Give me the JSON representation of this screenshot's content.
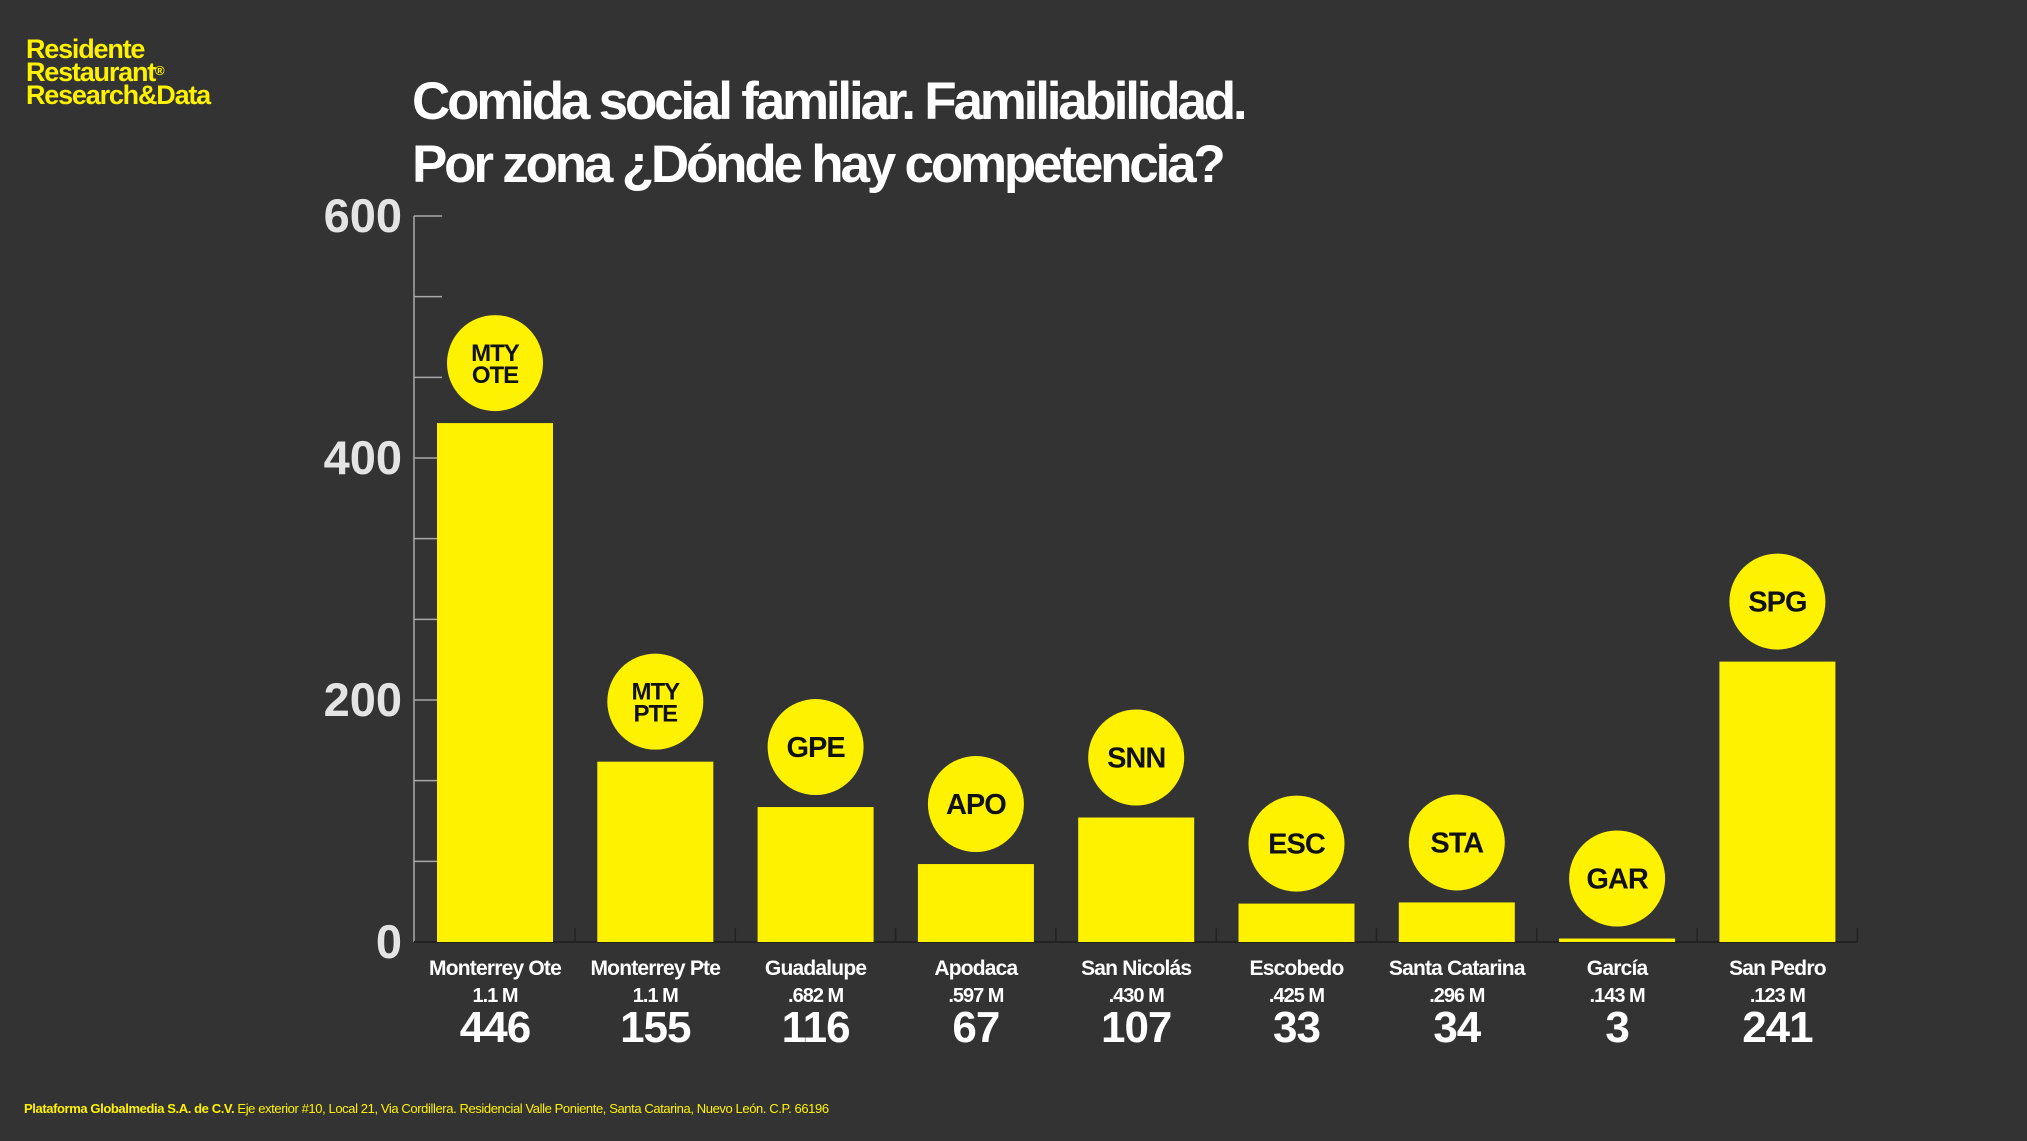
{
  "brand": {
    "lines": [
      "Residente",
      "Restaurant",
      "Research&Data"
    ],
    "registered_mark": "®"
  },
  "title": {
    "line1": "Comida social familiar. Familiabilidad.",
    "line2": "Por zona ¿Dónde hay competencia?"
  },
  "colors": {
    "background": "#333333",
    "accent": "#fff200",
    "axis": "#aaaaaa",
    "text": "#ffffff",
    "tick_label": "#e4e4e4"
  },
  "chart_data": {
    "type": "bar",
    "title": "Comida social familiar. Familiabilidad. Por zona ¿Dónde hay competencia?",
    "xlabel": "",
    "ylabel": "",
    "ylim": [
      0,
      600
    ],
    "yticks": [
      0,
      200,
      400,
      600
    ],
    "y_minor_step": 66.67,
    "grid": false,
    "legend": "none",
    "categories": [
      "Monterrey Ote",
      "Monterrey Pte",
      "Guadalupe",
      "Apodaca",
      "San Nicolás",
      "Escobedo",
      "Santa Catarina",
      "García",
      "San Pedro"
    ],
    "badges": [
      [
        "MTY",
        "OTE"
      ],
      [
        "MTY",
        "PTE"
      ],
      [
        "GPE"
      ],
      [
        "APO"
      ],
      [
        "SNN"
      ],
      [
        "ESC"
      ],
      [
        "STA"
      ],
      [
        "GAR"
      ],
      [
        "SPG"
      ]
    ],
    "population": [
      "1.1 M",
      "1.1 M",
      ".682 M",
      ".597 M",
      ".430 M",
      ".425 M",
      ".296 M",
      ".143 M",
      ".123 M"
    ],
    "values": [
      446,
      155,
      116,
      67,
      107,
      33,
      34,
      3,
      241
    ]
  },
  "footer": {
    "company": "Plataforma Globalmedia S.A. de C.V.",
    "address": "Eje exterior #10, Local 21, Via Cordillera. Residencial Valle Poniente, Santa Catarina, Nuevo León. C.P. 66196"
  }
}
